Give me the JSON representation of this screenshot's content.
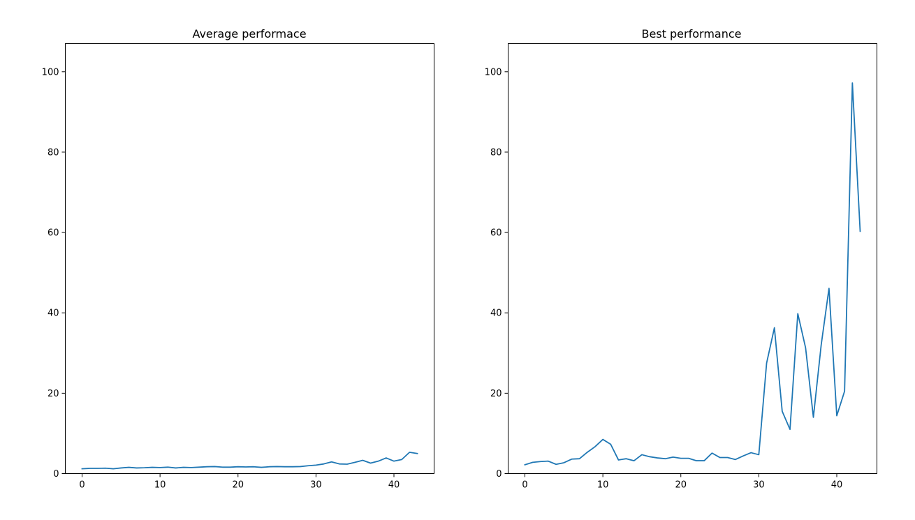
{
  "series_color": "#1f77b4",
  "chart_data": [
    {
      "type": "line",
      "title": "Average performace",
      "xlabel": "",
      "ylabel": "",
      "xlim": [
        -2.15,
        45.15
      ],
      "ylim": [
        0,
        107
      ],
      "xticks": [
        0,
        10,
        20,
        30,
        40
      ],
      "yticks": [
        0,
        20,
        40,
        60,
        80,
        100
      ],
      "grid": false,
      "x": [
        0,
        1,
        2,
        3,
        4,
        5,
        6,
        7,
        8,
        9,
        10,
        11,
        12,
        13,
        14,
        15,
        16,
        17,
        18,
        19,
        20,
        21,
        22,
        23,
        24,
        25,
        26,
        27,
        28,
        29,
        30,
        31,
        32,
        33,
        34,
        35,
        36,
        37,
        38,
        39,
        40,
        41,
        42,
        43
      ],
      "values": [
        1.2,
        1.3,
        1.3,
        1.35,
        1.2,
        1.4,
        1.55,
        1.4,
        1.45,
        1.55,
        1.5,
        1.6,
        1.4,
        1.55,
        1.5,
        1.6,
        1.7,
        1.75,
        1.6,
        1.6,
        1.7,
        1.65,
        1.7,
        1.55,
        1.7,
        1.75,
        1.7,
        1.7,
        1.75,
        1.95,
        2.1,
        2.4,
        2.9,
        2.4,
        2.35,
        2.8,
        3.3,
        2.6,
        3.1,
        3.9,
        3.1,
        3.5,
        5.3,
        5.0
      ]
    },
    {
      "type": "line",
      "title": "Best performance",
      "xlabel": "",
      "ylabel": "",
      "xlim": [
        -2.15,
        45.15
      ],
      "ylim": [
        0,
        107
      ],
      "xticks": [
        0,
        10,
        20,
        30,
        40
      ],
      "yticks": [
        0,
        20,
        40,
        60,
        80,
        100
      ],
      "grid": false,
      "x": [
        0,
        1,
        2,
        3,
        4,
        5,
        6,
        7,
        8,
        9,
        10,
        11,
        12,
        13,
        14,
        15,
        16,
        17,
        18,
        19,
        20,
        21,
        22,
        23,
        24,
        25,
        26,
        27,
        28,
        29,
        30,
        31,
        32,
        33,
        34,
        35,
        36,
        37,
        38,
        39,
        40,
        41,
        42,
        43
      ],
      "values": [
        2.2,
        2.8,
        3.0,
        3.1,
        2.3,
        2.7,
        3.6,
        3.7,
        5.3,
        6.7,
        8.5,
        7.3,
        3.4,
        3.7,
        3.2,
        4.7,
        4.2,
        3.9,
        3.7,
        4.1,
        3.8,
        3.8,
        3.2,
        3.2,
        5.1,
        4.0,
        4.0,
        3.5,
        4.4,
        5.2,
        4.7,
        27.5,
        36.3,
        15.5,
        11.0,
        39.8,
        31.3,
        14.0,
        32.0,
        46.1,
        14.4,
        20.5,
        97.2,
        60.3
      ]
    }
  ]
}
